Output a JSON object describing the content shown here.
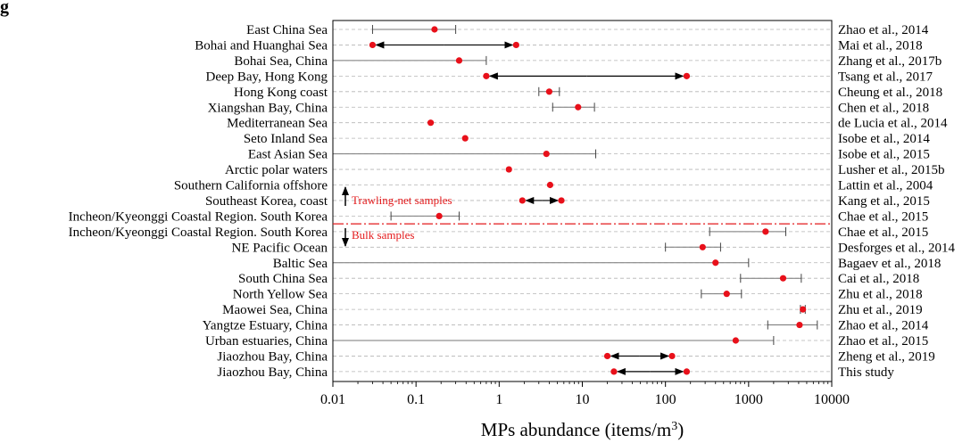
{
  "chart_data": {
    "type": "range-dot",
    "panel_label": "g",
    "xlabel": "MPs abundance (items/m",
    "xlabel_sup": "3",
    "xlabel_close": ")",
    "xscale": "log",
    "xlim": [
      0.01,
      10000
    ],
    "xticks": [
      {
        "value": 0.01,
        "label": "0.01"
      },
      {
        "value": 0.1,
        "label": "0.1"
      },
      {
        "value": 1,
        "label": "1"
      },
      {
        "value": 10,
        "label": "10"
      },
      {
        "value": 100,
        "label": "100"
      },
      {
        "value": 1000,
        "label": "1000"
      },
      {
        "value": 10000,
        "label": "10000"
      }
    ],
    "grid": "horizontal-dashed",
    "divider_after_row": 12,
    "annotations": {
      "trawling": "Trawling-net samples",
      "bulk": "Bulk samples"
    },
    "rows": [
      {
        "region": "East China Sea",
        "ref": "Zhao et al., 2014",
        "style": "whisker",
        "lo": 0.03,
        "hi": 0.3,
        "dots": [
          0.167
        ]
      },
      {
        "region": "Bohai and Huanghai Sea",
        "ref": "Mai et al., 2018",
        "style": "arrow",
        "lo": 0.03,
        "hi": 1.6,
        "dots": [
          0.03,
          1.6
        ]
      },
      {
        "region": "Bohai Sea, China",
        "ref": "Zhang et al., 2017b",
        "style": "whisker",
        "lo": 0.01,
        "hi": 0.7,
        "dots": [
          0.33
        ]
      },
      {
        "region": "Deep Bay, Hong Kong",
        "ref": "Tsang et al., 2017",
        "style": "arrow",
        "lo": 0.7,
        "hi": 180,
        "dots": [
          0.7,
          180
        ]
      },
      {
        "region": "Hong Kong coast",
        "ref": "Cheung et al., 2018",
        "style": "whisker",
        "lo": 3,
        "hi": 5.3,
        "dots": [
          4
        ]
      },
      {
        "region": "Xiangshan Bay, China",
        "ref": "Chen et al., 2018",
        "style": "whisker",
        "lo": 4.4,
        "hi": 14,
        "dots": [
          8.9
        ]
      },
      {
        "region": "Mediterranean Sea",
        "ref": "de Lucia et al., 2014",
        "style": "dot",
        "dots": [
          0.15
        ]
      },
      {
        "region": "Seto Inland Sea",
        "ref": "Isobe et al., 2014",
        "style": "dot",
        "dots": [
          0.39
        ]
      },
      {
        "region": "East Asian Sea",
        "ref": "Isobe et al., 2015",
        "style": "whisker",
        "lo": 0.01,
        "hi": 14.5,
        "dots": [
          3.7
        ]
      },
      {
        "region": "Arctic polar waters",
        "ref": "Lusher et al., 2015b",
        "style": "dot",
        "dots": [
          1.31
        ]
      },
      {
        "region": "Southern California offshore",
        "ref": "Lattin et al., 2004",
        "style": "dot",
        "dots": [
          4.1
        ]
      },
      {
        "region": "Southeast Korea, coast",
        "ref": "Kang et al., 2015",
        "style": "arrow",
        "lo": 1.9,
        "hi": 5.6,
        "dots": [
          1.9,
          5.6
        ]
      },
      {
        "region": "Incheon/Kyeonggi Coastal Region. South Korea",
        "ref": "Chae et al., 2015",
        "style": "whisker",
        "lo": 0.05,
        "hi": 0.33,
        "dots": [
          0.19
        ]
      },
      {
        "region": "Incheon/Kyeonggi Coastal Region.  South Korea",
        "ref": "Chae et al., 2015",
        "style": "whisker",
        "lo": 340,
        "hi": 2800,
        "dots": [
          1600
        ]
      },
      {
        "region": "NE Pacific Ocean",
        "ref": "Desforges et al., 2014",
        "style": "whisker",
        "lo": 100,
        "hi": 460,
        "dots": [
          280
        ]
      },
      {
        "region": "Baltic Sea",
        "ref": "Bagaev et al., 2018",
        "style": "whisker",
        "lo": 0.01,
        "hi": 1000,
        "dots": [
          400
        ]
      },
      {
        "region": "South China Sea",
        "ref": "Cai et al., 2018",
        "style": "whisker",
        "lo": 800,
        "hi": 4300,
        "dots": [
          2600
        ]
      },
      {
        "region": "North Yellow Sea",
        "ref": "Zhu et al., 2018",
        "style": "whisker",
        "lo": 270,
        "hi": 820,
        "dots": [
          545
        ]
      },
      {
        "region": "Maowei Sea, China",
        "ref": "Zhu et al., 2019",
        "style": "whisker",
        "lo": 4200,
        "hi": 4800,
        "dots": [
          4500
        ]
      },
      {
        "region": "Yangtze Estuary, China",
        "ref": "Zhao et al., 2014",
        "style": "whisker",
        "lo": 1700,
        "hi": 6700,
        "dots": [
          4100
        ]
      },
      {
        "region": "Urban estuaries, China",
        "ref": "Zhao et al., 2015",
        "style": "whisker",
        "lo": 0.01,
        "hi": 2000,
        "dots": [
          700
        ]
      },
      {
        "region": "Jiaozhou Bay,  China",
        "ref": "Zheng et al., 2019",
        "style": "arrow",
        "lo": 20,
        "hi": 120,
        "dots": [
          20,
          120
        ]
      },
      {
        "region": "Jiaozhou Bay, China",
        "ref": "This study",
        "style": "arrow",
        "lo": 24,
        "hi": 180,
        "dots": [
          24,
          180
        ]
      }
    ]
  }
}
